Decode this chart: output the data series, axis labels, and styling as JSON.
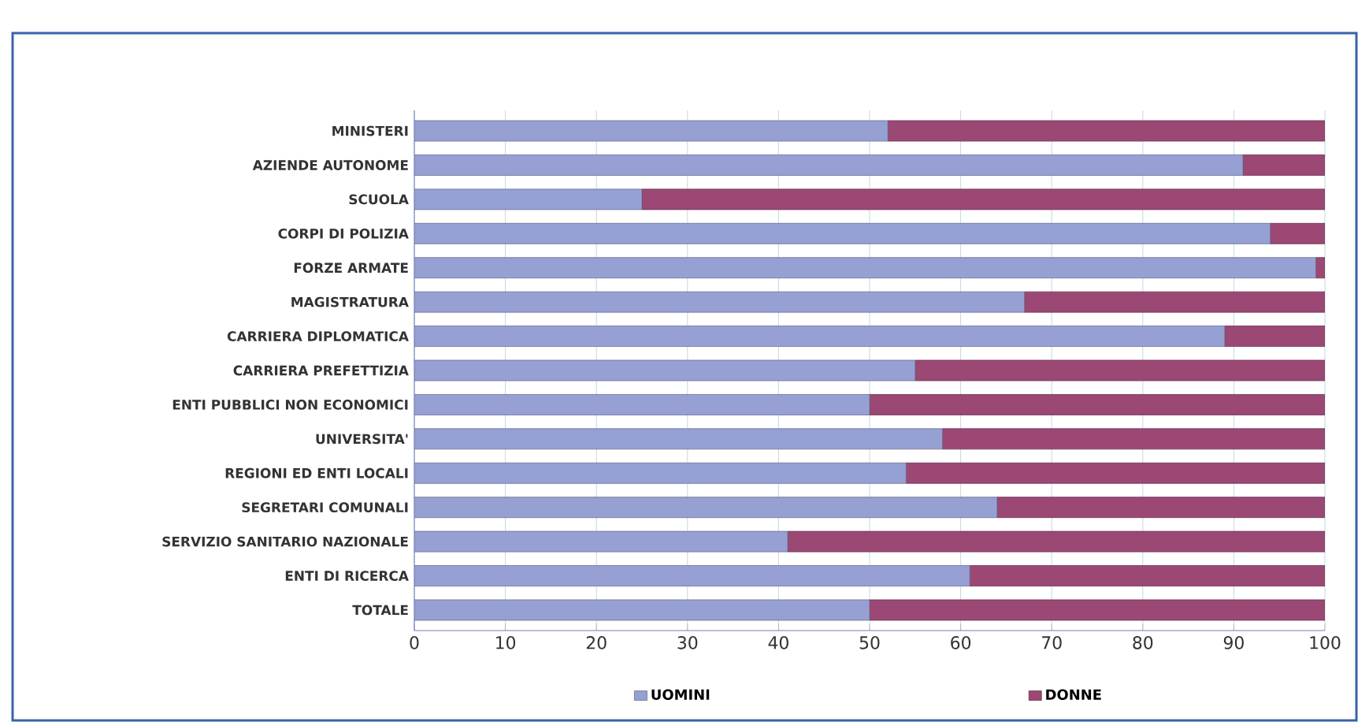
{
  "chart_data": {
    "type": "bar",
    "orientation": "horizontal",
    "stacked": true,
    "categories": [
      "MINISTERI",
      "AZIENDE AUTONOME",
      "SCUOLA",
      "CORPI DI POLIZIA",
      "FORZE ARMATE",
      "MAGISTRATURA",
      "CARRIERA DIPLOMATICA",
      "CARRIERA PREFETTIZIA",
      "ENTI PUBBLICI NON ECONOMICI",
      "UNIVERSITA'",
      "REGIONI ED ENTI LOCALI",
      "SEGRETARI COMUNALI",
      "SERVIZIO SANITARIO NAZIONALE",
      "ENTI DI RICERCA",
      "TOTALE"
    ],
    "series": [
      {
        "name": "UOMINI",
        "color": "#97a0d3",
        "values": [
          52,
          91,
          25,
          94,
          99,
          67,
          89,
          55,
          50,
          58,
          54,
          64,
          41,
          61,
          50
        ]
      },
      {
        "name": "DONNE",
        "color": "#9b4874",
        "values": [
          48,
          9,
          75,
          6,
          1,
          33,
          11,
          45,
          50,
          42,
          46,
          36,
          59,
          39,
          50
        ]
      }
    ],
    "xlim": [
      0,
      100
    ],
    "xticks": [
      0,
      10,
      20,
      30,
      40,
      50,
      60,
      70,
      80,
      90,
      100
    ],
    "grid": "x",
    "legend": "bottom"
  }
}
